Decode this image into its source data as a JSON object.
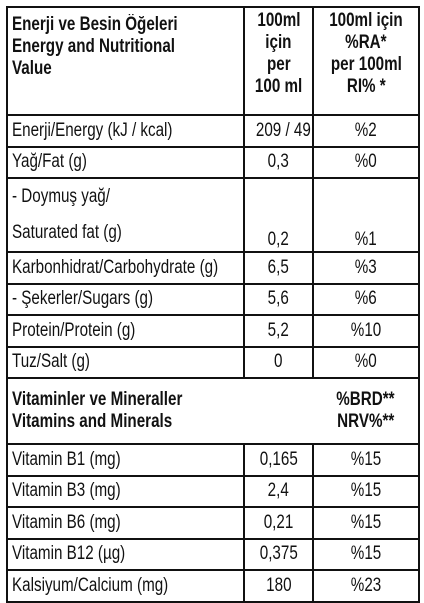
{
  "header": {
    "col1": [
      "Enerji ve Besin Öğeleri",
      "Energy and Nutritional",
      "Value"
    ],
    "col2": [
      "100ml",
      "için",
      "per",
      "100 ml"
    ],
    "col3": [
      "100ml için",
      "%RA*",
      "per 100ml",
      "RI% *"
    ]
  },
  "rows": [
    {
      "label": [
        "Enerji/Energy (kJ / kcal)"
      ],
      "per_100ml": "209 / 49",
      "ri": "%2"
    },
    {
      "label": [
        "Yağ/Fat (g)"
      ],
      "per_100ml": "0,3",
      "ri": "%0"
    },
    {
      "label": [
        " - Doymuş yağ/",
        "Saturated fat (g)"
      ],
      "per_100ml": "0,2",
      "ri": "%1"
    },
    {
      "label": [
        "Karbonhidrat/Carbohydrate (g)"
      ],
      "per_100ml": "6,5",
      "ri": "%3"
    },
    {
      "label": [
        " - Şekerler/Sugars (g)"
      ],
      "per_100ml": "5,6",
      "ri": "%6"
    },
    {
      "label": [
        "Protein/Protein (g)"
      ],
      "per_100ml": "5,2",
      "ri": "%10"
    },
    {
      "label": [
        "Tuz/Salt (g)"
      ],
      "per_100ml": "0",
      "ri": "%0"
    }
  ],
  "vitamins_header": {
    "title": [
      "Vitaminler ve Mineraller",
      "Vitamins and Minerals"
    ],
    "ri": [
      "%BRD**",
      "NRV%**"
    ]
  },
  "vitamins": [
    {
      "label": [
        "Vitamin B1 (mg)"
      ],
      "per_100ml": "0,165",
      "ri": "%15"
    },
    {
      "label": [
        "Vitamin B3 (mg)"
      ],
      "per_100ml": "2,4",
      "ri": "%15"
    },
    {
      "label": [
        "Vitamin B6 (mg)"
      ],
      "per_100ml": "0,21",
      "ri": "%15"
    },
    {
      "label": [
        "Vitamin B12 (µg)"
      ],
      "per_100ml": "0,375",
      "ri": "%15"
    },
    {
      "label": [
        "Kalsiyum/Calcium (mg)"
      ],
      "per_100ml": "180",
      "ri": "%23"
    }
  ]
}
